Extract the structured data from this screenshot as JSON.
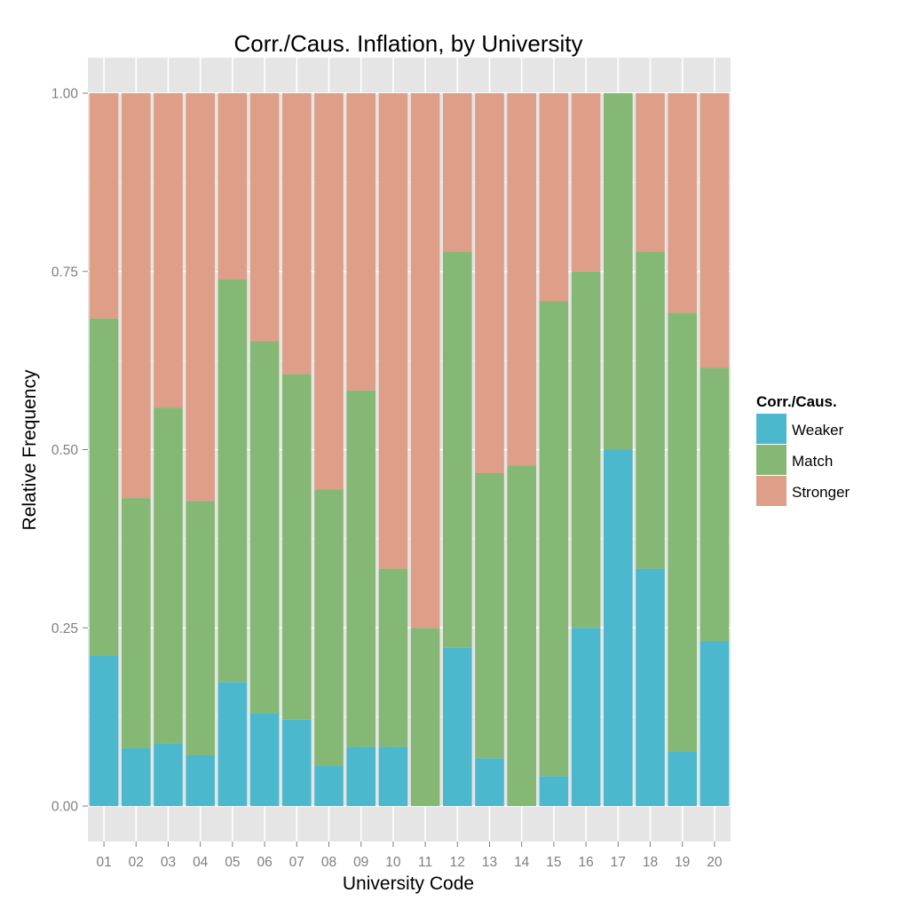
{
  "chart_data": {
    "type": "bar",
    "stacked": true,
    "title": "Corr./Caus. Inflation, by University",
    "xlabel": "University Code",
    "ylabel": "Relative Frequency",
    "ylim": [
      0,
      1
    ],
    "yticks": [
      "0.00",
      "0.25",
      "0.50",
      "0.75",
      "1.00"
    ],
    "categories": [
      "01",
      "02",
      "03",
      "04",
      "05",
      "06",
      "07",
      "08",
      "09",
      "10",
      "11",
      "12",
      "13",
      "14",
      "15",
      "16",
      "17",
      "18",
      "19",
      "20"
    ],
    "series": [
      {
        "name": "Weaker",
        "color": "#4bb8cd",
        "values": [
          0.211,
          0.081,
          0.088,
          0.071,
          0.174,
          0.13,
          0.121,
          0.056,
          0.083,
          0.083,
          0.0,
          0.222,
          0.067,
          0.0,
          0.042,
          0.25,
          0.5,
          0.333,
          0.077,
          0.231
        ]
      },
      {
        "name": "Match",
        "color": "#85b874",
        "values": [
          0.473,
          0.351,
          0.471,
          0.357,
          0.565,
          0.522,
          0.485,
          0.388,
          0.5,
          0.25,
          0.25,
          0.556,
          0.4,
          0.478,
          0.666,
          0.5,
          0.5,
          0.445,
          0.615,
          0.384
        ]
      },
      {
        "name": "Stronger",
        "color": "#de9e87",
        "values": [
          0.316,
          0.568,
          0.441,
          0.572,
          0.261,
          0.348,
          0.394,
          0.556,
          0.417,
          0.667,
          0.75,
          0.222,
          0.533,
          0.522,
          0.292,
          0.25,
          0.0,
          0.222,
          0.308,
          0.385
        ]
      }
    ],
    "legend": {
      "title": "Corr./Caus.",
      "position": "right"
    },
    "grid": true
  }
}
